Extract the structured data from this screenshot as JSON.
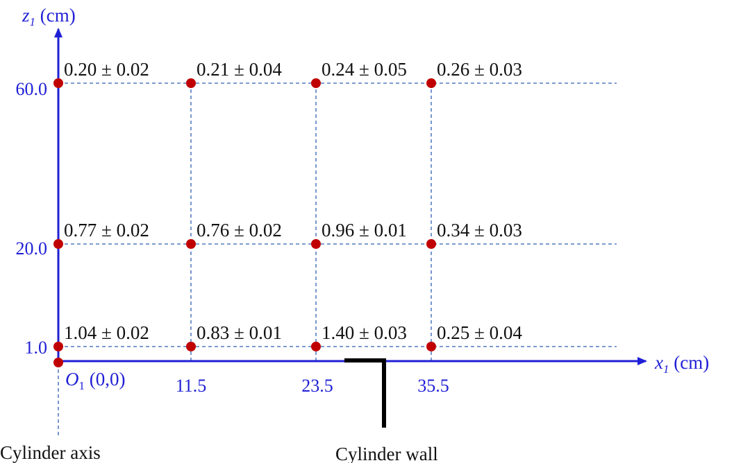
{
  "axes": {
    "z_label_var": "z",
    "z_label_sub": "1",
    "z_label_unit": " (cm)",
    "x_label_var": "x",
    "x_label_sub": "1",
    "x_label_unit": " (cm)",
    "origin_var": "O",
    "origin_sub": "1",
    "origin_coords": " (0,0)"
  },
  "x_ticks": [
    "11.5",
    "23.5",
    "35.5"
  ],
  "z_ticks": [
    "60.0",
    "20.0",
    "1.0"
  ],
  "labels": {
    "cylinder_axis": "Cylinder axis",
    "cylinder_wall": "Cylinder wall"
  },
  "colors": {
    "axis": "#1f1fd6",
    "point": "#c00000",
    "gridline": "#2f5fb0",
    "text": "#111111",
    "wall": "#000000"
  },
  "points": [
    {
      "x": 0.0,
      "z": 60.0,
      "value": "0.20 ± 0.02"
    },
    {
      "x": 11.5,
      "z": 60.0,
      "value": "0.21 ± 0.04"
    },
    {
      "x": 23.5,
      "z": 60.0,
      "value": "0.24 ± 0.05"
    },
    {
      "x": 35.5,
      "z": 60.0,
      "value": "0.26 ± 0.03"
    },
    {
      "x": 0.0,
      "z": 20.0,
      "value": "0.77 ± 0.02"
    },
    {
      "x": 11.5,
      "z": 20.0,
      "value": "0.76 ± 0.02"
    },
    {
      "x": 23.5,
      "z": 20.0,
      "value": "0.96 ± 0.01"
    },
    {
      "x": 35.5,
      "z": 20.0,
      "value": "0.34 ± 0.03"
    },
    {
      "x": 0.0,
      "z": 1.0,
      "value": "1.04 ± 0.02"
    },
    {
      "x": 11.5,
      "z": 1.0,
      "value": "0.83 ± 0.01"
    },
    {
      "x": 23.5,
      "z": 1.0,
      "value": "1.40 ± 0.03"
    },
    {
      "x": 35.5,
      "z": 1.0,
      "value": "0.25 ± 0.04"
    }
  ]
}
